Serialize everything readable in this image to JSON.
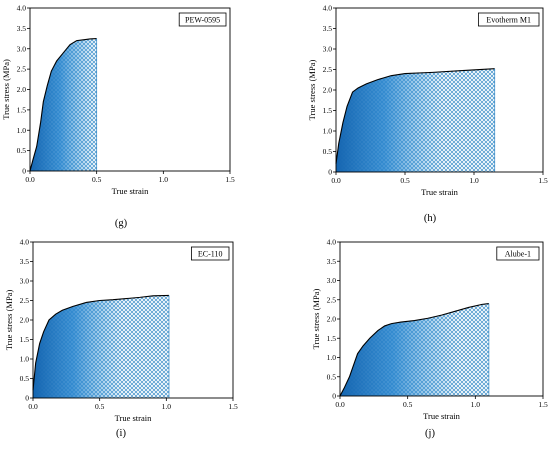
{
  "chart_data": [
    {
      "type": "area",
      "panel_label": "(g)",
      "legend": "PEW-0595",
      "xlabel": "True strain",
      "ylabel": "True stress (MPa)",
      "xlim": [
        0,
        1.5
      ],
      "ylim": [
        0,
        4.0
      ],
      "xticks": [
        "0.0",
        "0.5",
        "1.0",
        "1.5"
      ],
      "yticks": [
        "0",
        "0.5",
        "1.0",
        "1.5",
        "2.0",
        "2.5",
        "3.0",
        "3.5",
        "4.0"
      ],
      "x": [
        0,
        0.02,
        0.05,
        0.08,
        0.1,
        0.13,
        0.16,
        0.2,
        0.25,
        0.3,
        0.35,
        0.4,
        0.45,
        0.5
      ],
      "y": [
        0,
        0.25,
        0.6,
        1.2,
        1.7,
        2.1,
        2.45,
        2.7,
        2.9,
        3.1,
        3.2,
        3.22,
        3.24,
        3.25
      ]
    },
    {
      "type": "area",
      "panel_label": "(h)",
      "legend": "Evotherm M1",
      "xlabel": "True strain",
      "ylabel": "True stress (MPa)",
      "xlim": [
        0,
        1.5
      ],
      "ylim": [
        0,
        4.0
      ],
      "xticks": [
        "0.0",
        "0.5",
        "1.0",
        "1.5"
      ],
      "yticks": [
        "0",
        "0.5",
        "1.0",
        "1.5",
        "2.0",
        "2.5",
        "3.0",
        "3.5",
        "4.0"
      ],
      "x": [
        0,
        0.02,
        0.05,
        0.08,
        0.12,
        0.16,
        0.22,
        0.3,
        0.4,
        0.5,
        0.7,
        0.9,
        1.15
      ],
      "y": [
        0.2,
        0.7,
        1.2,
        1.6,
        1.95,
        2.05,
        2.15,
        2.25,
        2.35,
        2.4,
        2.43,
        2.47,
        2.52
      ]
    },
    {
      "type": "area",
      "panel_label": "(i)",
      "legend": "EC-110",
      "xlabel": "True strain",
      "ylabel": "True stress (MPa)",
      "xlim": [
        0,
        1.5
      ],
      "ylim": [
        0,
        4.0
      ],
      "xticks": [
        "0.0",
        "0.5",
        "1.0",
        "1.5"
      ],
      "yticks": [
        "0",
        "0.5",
        "1.0",
        "1.5",
        "2.0",
        "2.5",
        "3.0",
        "3.5",
        "4.0"
      ],
      "x": [
        0,
        0.02,
        0.05,
        0.08,
        0.12,
        0.17,
        0.22,
        0.3,
        0.4,
        0.5,
        0.6,
        0.7,
        0.8,
        0.9,
        1.02
      ],
      "y": [
        0.2,
        0.9,
        1.4,
        1.7,
        2.0,
        2.15,
        2.25,
        2.35,
        2.45,
        2.5,
        2.52,
        2.55,
        2.58,
        2.62,
        2.63
      ]
    },
    {
      "type": "area",
      "panel_label": "(j)",
      "legend": "Alube-1",
      "xlabel": "True strain",
      "ylabel": "True stress (MPa)",
      "xlim": [
        0,
        1.5
      ],
      "ylim": [
        0,
        4.0
      ],
      "xticks": [
        "0.0",
        "0.5",
        "1.0",
        "1.5"
      ],
      "yticks": [
        "0",
        "0.5",
        "1.0",
        "1.5",
        "2.0",
        "2.5",
        "3.0",
        "3.5",
        "4.0"
      ],
      "x": [
        0,
        0.03,
        0.07,
        0.1,
        0.13,
        0.17,
        0.22,
        0.28,
        0.33,
        0.38,
        0.45,
        0.55,
        0.65,
        0.75,
        0.85,
        0.95,
        1.05,
        1.1
      ],
      "y": [
        0,
        0.2,
        0.5,
        0.8,
        1.1,
        1.3,
        1.5,
        1.7,
        1.82,
        1.88,
        1.92,
        1.96,
        2.02,
        2.1,
        2.2,
        2.3,
        2.38,
        2.4
      ]
    }
  ]
}
